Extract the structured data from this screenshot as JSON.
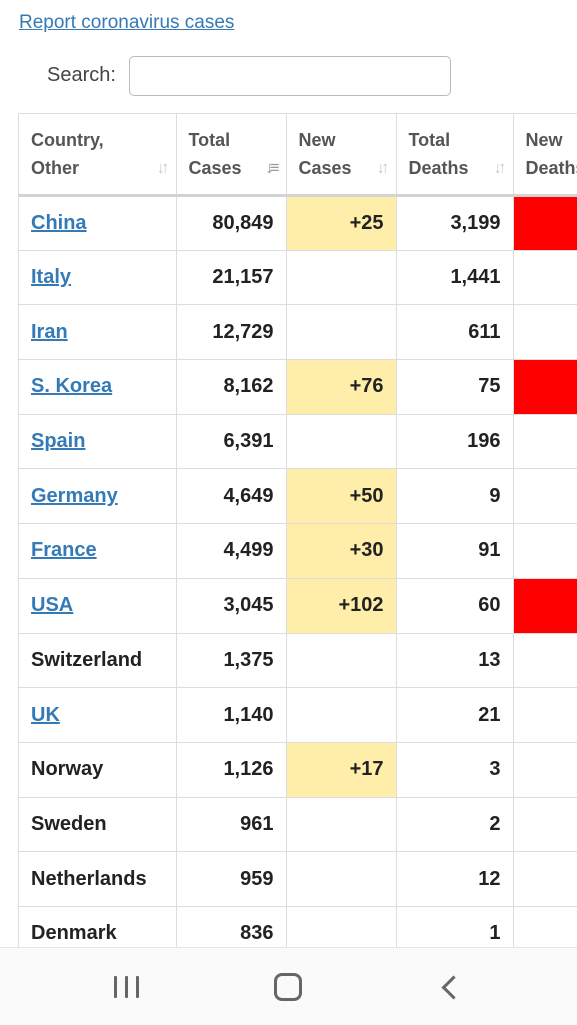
{
  "report_link": "Report coronavirus cases",
  "search": {
    "label": "Search:",
    "value": "",
    "placeholder": ""
  },
  "table": {
    "headers": [
      {
        "line1": "Country,",
        "line2": "Other",
        "sort_icon": "sort-icon"
      },
      {
        "line1": "Total",
        "line2": "Cases",
        "sort_icon": "sort-desc-icon"
      },
      {
        "line1": "New",
        "line2": "Cases",
        "sort_icon": "sort-icon"
      },
      {
        "line1": "Total",
        "line2": "Deaths",
        "sort_icon": "sort-icon"
      },
      {
        "line1": "New",
        "line2": "Deaths",
        "sort_icon": "sort-icon"
      }
    ],
    "rows": [
      {
        "country": "China",
        "link": true,
        "total_cases": "80,849",
        "new_cases": "+25",
        "total_deaths": "3,199",
        "new_deaths": "",
        "new_deaths_flag": true
      },
      {
        "country": "Italy",
        "link": true,
        "total_cases": "21,157",
        "new_cases": "",
        "total_deaths": "1,441",
        "new_deaths": "",
        "new_deaths_flag": false
      },
      {
        "country": "Iran",
        "link": true,
        "total_cases": "12,729",
        "new_cases": "",
        "total_deaths": "611",
        "new_deaths": "",
        "new_deaths_flag": false
      },
      {
        "country": "S. Korea",
        "link": true,
        "total_cases": "8,162",
        "new_cases": "+76",
        "total_deaths": "75",
        "new_deaths": "",
        "new_deaths_flag": true
      },
      {
        "country": "Spain",
        "link": true,
        "total_cases": "6,391",
        "new_cases": "",
        "total_deaths": "196",
        "new_deaths": "",
        "new_deaths_flag": false
      },
      {
        "country": "Germany",
        "link": true,
        "total_cases": "4,649",
        "new_cases": "+50",
        "total_deaths": "9",
        "new_deaths": "",
        "new_deaths_flag": false
      },
      {
        "country": "France",
        "link": true,
        "total_cases": "4,499",
        "new_cases": "+30",
        "total_deaths": "91",
        "new_deaths": "",
        "new_deaths_flag": false
      },
      {
        "country": "USA",
        "link": true,
        "total_cases": "3,045",
        "new_cases": "+102",
        "total_deaths": "60",
        "new_deaths": "",
        "new_deaths_flag": true
      },
      {
        "country": "Switzerland",
        "link": false,
        "total_cases": "1,375",
        "new_cases": "",
        "total_deaths": "13",
        "new_deaths": "",
        "new_deaths_flag": false
      },
      {
        "country": "UK",
        "link": true,
        "total_cases": "1,140",
        "new_cases": "",
        "total_deaths": "21",
        "new_deaths": "",
        "new_deaths_flag": false
      },
      {
        "country": "Norway",
        "link": false,
        "total_cases": "1,126",
        "new_cases": "+17",
        "total_deaths": "3",
        "new_deaths": "",
        "new_deaths_flag": false
      },
      {
        "country": "Sweden",
        "link": false,
        "total_cases": "961",
        "new_cases": "",
        "total_deaths": "2",
        "new_deaths": "",
        "new_deaths_flag": false
      },
      {
        "country": "Netherlands",
        "link": false,
        "total_cases": "959",
        "new_cases": "",
        "total_deaths": "12",
        "new_deaths": "",
        "new_deaths_flag": false
      },
      {
        "country": "Denmark",
        "link": false,
        "total_cases": "836",
        "new_cases": "",
        "total_deaths": "1",
        "new_deaths": "",
        "new_deaths_flag": false
      }
    ]
  },
  "colors": {
    "link": "#337ab7",
    "new_cases_highlight": "#ffeeaa",
    "new_deaths_highlight": "#ff0000"
  },
  "navbar": {
    "icons": [
      "recent-apps-icon",
      "home-icon",
      "back-icon"
    ]
  }
}
